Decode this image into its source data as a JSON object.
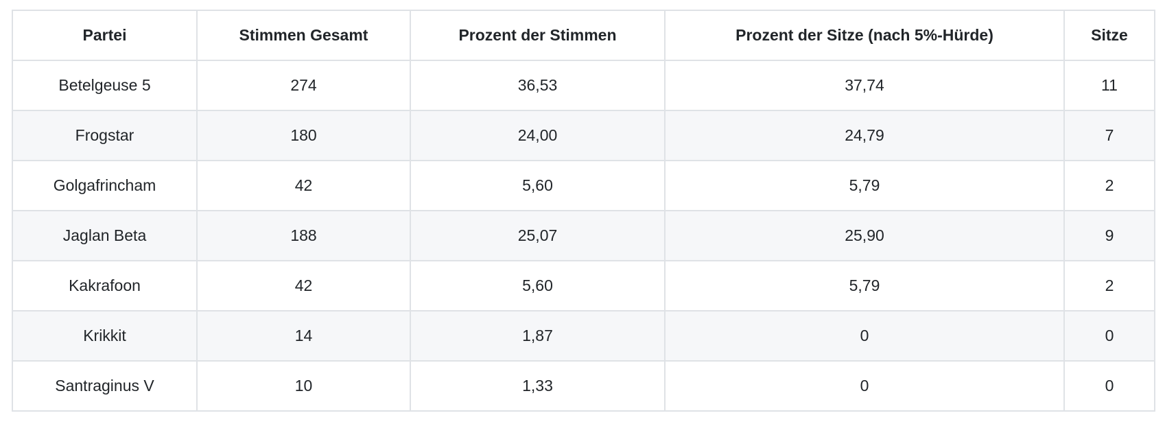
{
  "table": {
    "columns": [
      {
        "key": "partei",
        "label": "Partei"
      },
      {
        "key": "stimmen-gesamt",
        "label": "Stimmen Gesamt"
      },
      {
        "key": "prozent-der-stimmen",
        "label": "Prozent der Stimmen"
      },
      {
        "key": "prozent-der-sitze",
        "label": "Prozent der Sitze (nach 5%-Hürde)"
      },
      {
        "key": "sitze",
        "label": "Sitze"
      }
    ],
    "rows": [
      {
        "cells": [
          "Betelgeuse 5",
          "274",
          "36,53",
          "37,74",
          "11"
        ]
      },
      {
        "cells": [
          "Frogstar",
          "180",
          "24,00",
          "24,79",
          "7"
        ]
      },
      {
        "cells": [
          "Golgafrincham",
          "42",
          "5,60",
          "5,79",
          "2"
        ]
      },
      {
        "cells": [
          "Jaglan Beta",
          "188",
          "25,07",
          "25,90",
          "9"
        ]
      },
      {
        "cells": [
          "Kakrafoon",
          "42",
          "5,60",
          "5,79",
          "2"
        ]
      },
      {
        "cells": [
          "Krikkit",
          "14",
          "1,87",
          "0",
          "0"
        ]
      },
      {
        "cells": [
          "Santraginus V",
          "10",
          "1,33",
          "0",
          "0"
        ]
      }
    ]
  },
  "colors": {
    "background": "#ffffff",
    "border": "#dfe2e6",
    "stripe": "#f6f7f9",
    "text": "#212529"
  },
  "chart_data": {
    "type": "table",
    "title": "",
    "columns": [
      "Partei",
      "Stimmen Gesamt",
      "Prozent der Stimmen",
      "Prozent der Sitze (nach 5%-Hürde)",
      "Sitze"
    ],
    "rows": [
      [
        "Betelgeuse 5",
        274,
        36.53,
        37.74,
        11
      ],
      [
        "Frogstar",
        180,
        24.0,
        24.79,
        7
      ],
      [
        "Golgafrincham",
        42,
        5.6,
        5.79,
        2
      ],
      [
        "Jaglan Beta",
        188,
        25.07,
        25.9,
        9
      ],
      [
        "Kakrafoon",
        42,
        5.6,
        5.79,
        2
      ],
      [
        "Krikkit",
        14,
        1.87,
        0,
        0
      ],
      [
        "Santraginus V",
        10,
        1.33,
        0,
        0
      ]
    ],
    "notes": "Decimal values displayed with German comma separator in the UI; zebra-striped grid table, all cells centered"
  }
}
